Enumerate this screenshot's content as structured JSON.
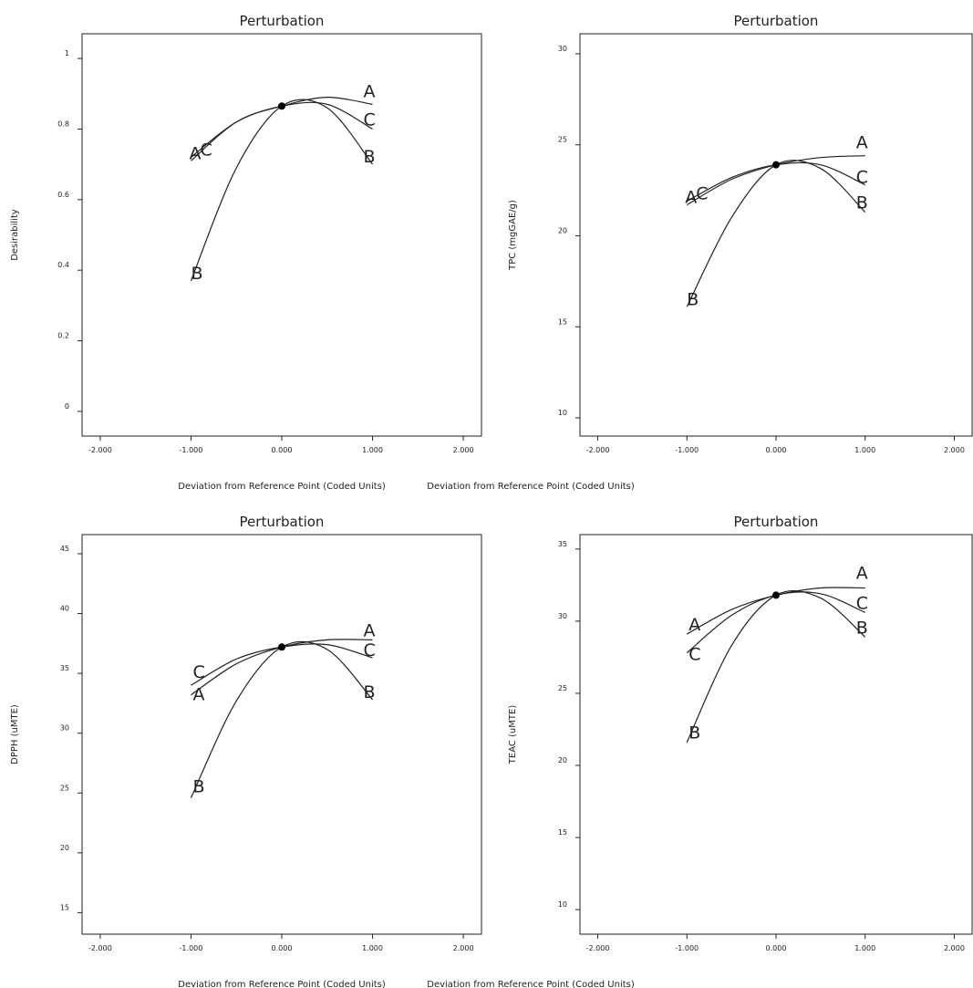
{
  "chart_data": [
    {
      "type": "line",
      "title": "Perturbation",
      "xlabel": "Deviation from Reference Point (Coded Units)",
      "ylabel": "Desirability",
      "xlim": [
        -2.2,
        2.2
      ],
      "ylim": [
        -0.07,
        1.07
      ],
      "x_ticks": [
        -2,
        -1,
        0,
        1,
        2
      ],
      "x_tick_labels": [
        "-2.000",
        "-1.000",
        "0.000",
        "1.000",
        "2.000"
      ],
      "y_ticks": [
        0,
        0.2,
        0.4,
        0.6,
        0.8,
        1
      ],
      "y_tick_labels": [
        "0",
        "0.2",
        "0.4",
        "0.6",
        "0.8",
        "1"
      ],
      "reference_point": {
        "x": 0,
        "y": 0.865
      },
      "series": [
        {
          "name": "A",
          "x": [
            -1,
            -0.5,
            0,
            0.5,
            1
          ],
          "y": [
            0.71,
            0.82,
            0.865,
            0.89,
            0.87
          ]
        },
        {
          "name": "B",
          "x": [
            -1,
            -0.5,
            0,
            0.5,
            1
          ],
          "y": [
            0.37,
            0.69,
            0.865,
            0.86,
            0.7
          ]
        },
        {
          "name": "C",
          "x": [
            -1,
            -0.5,
            0,
            0.5,
            1
          ],
          "y": [
            0.72,
            0.82,
            0.865,
            0.87,
            0.8
          ]
        }
      ]
    },
    {
      "type": "line",
      "title": "Perturbation",
      "xlabel": "Deviation from Reference Point (Coded Units)",
      "ylabel": "TPC (mgGAE/g)",
      "xlim": [
        -2.2,
        2.2
      ],
      "ylim": [
        9.0,
        31.1
      ],
      "x_ticks": [
        -2,
        -1,
        0,
        1,
        2
      ],
      "x_tick_labels": [
        "-2.000",
        "-1.000",
        "0.000",
        "1.000",
        "2.000"
      ],
      "y_ticks": [
        10,
        15,
        20,
        25,
        30
      ],
      "y_tick_labels": [
        "10",
        "15",
        "20",
        "25",
        "30"
      ],
      "reference_point": {
        "x": 0,
        "y": 23.9
      },
      "series": [
        {
          "name": "A",
          "x": [
            -1,
            -0.5,
            0,
            0.5,
            1
          ],
          "y": [
            21.7,
            23.1,
            23.9,
            24.3,
            24.4
          ]
        },
        {
          "name": "B",
          "x": [
            -1,
            -0.5,
            0,
            0.5,
            1
          ],
          "y": [
            16.1,
            21.0,
            23.9,
            23.7,
            21.3
          ]
        },
        {
          "name": "C",
          "x": [
            -1,
            -0.5,
            0,
            0.5,
            1
          ],
          "y": [
            21.9,
            23.2,
            23.9,
            23.9,
            22.8
          ]
        }
      ]
    },
    {
      "type": "line",
      "title": "Perturbation",
      "xlabel": "Deviation from Reference Point (Coded Units)",
      "ylabel": "DPPH (uMTE)",
      "xlim": [
        -2.2,
        2.2
      ],
      "ylim": [
        13.2,
        46.6
      ],
      "x_ticks": [
        -2,
        -1,
        0,
        1,
        2
      ],
      "x_tick_labels": [
        "-2.000",
        "-1.000",
        "0.000",
        "1.000",
        "2.000"
      ],
      "y_ticks": [
        15,
        20,
        25,
        30,
        35,
        40,
        45
      ],
      "y_tick_labels": [
        "15",
        "20",
        "25",
        "30",
        "35",
        "40",
        "45"
      ],
      "reference_point": {
        "x": 0,
        "y": 37.2
      },
      "series": [
        {
          "name": "A",
          "x": [
            -1,
            -0.5,
            0,
            0.5,
            1
          ],
          "y": [
            33.2,
            35.8,
            37.2,
            37.8,
            37.8
          ]
        },
        {
          "name": "B",
          "x": [
            -1,
            -0.5,
            0,
            0.5,
            1
          ],
          "y": [
            24.6,
            32.7,
            37.2,
            37.0,
            32.8
          ]
        },
        {
          "name": "C",
          "x": [
            -1,
            -0.5,
            0,
            0.5,
            1
          ],
          "y": [
            34.0,
            36.2,
            37.2,
            37.4,
            36.3
          ]
        }
      ]
    },
    {
      "type": "line",
      "title": "Perturbation",
      "xlabel": "Deviation from Reference Point (Coded Units)",
      "ylabel": "TEAC (uMTE)",
      "xlim": [
        -2.2,
        2.2
      ],
      "ylim": [
        8.3,
        36.0
      ],
      "x_ticks": [
        -2,
        -1,
        0,
        1,
        2
      ],
      "x_tick_labels": [
        "-2.000",
        "-1.000",
        "0.000",
        "1.000",
        "2.000"
      ],
      "y_ticks": [
        10,
        15,
        20,
        25,
        30,
        35
      ],
      "y_tick_labels": [
        "10",
        "15",
        "20",
        "25",
        "30",
        "35"
      ],
      "reference_point": {
        "x": 0,
        "y": 31.8
      },
      "series": [
        {
          "name": "A",
          "x": [
            -1,
            -0.5,
            0,
            0.5,
            1
          ],
          "y": [
            29.1,
            30.8,
            31.8,
            32.3,
            32.3
          ]
        },
        {
          "name": "B",
          "x": [
            -1,
            -0.5,
            0,
            0.5,
            1
          ],
          "y": [
            21.6,
            28.3,
            31.8,
            31.6,
            28.9
          ]
        },
        {
          "name": "C",
          "x": [
            -1,
            -0.5,
            0,
            0.5,
            1
          ],
          "y": [
            27.8,
            30.4,
            31.8,
            31.9,
            30.6
          ]
        }
      ]
    }
  ]
}
